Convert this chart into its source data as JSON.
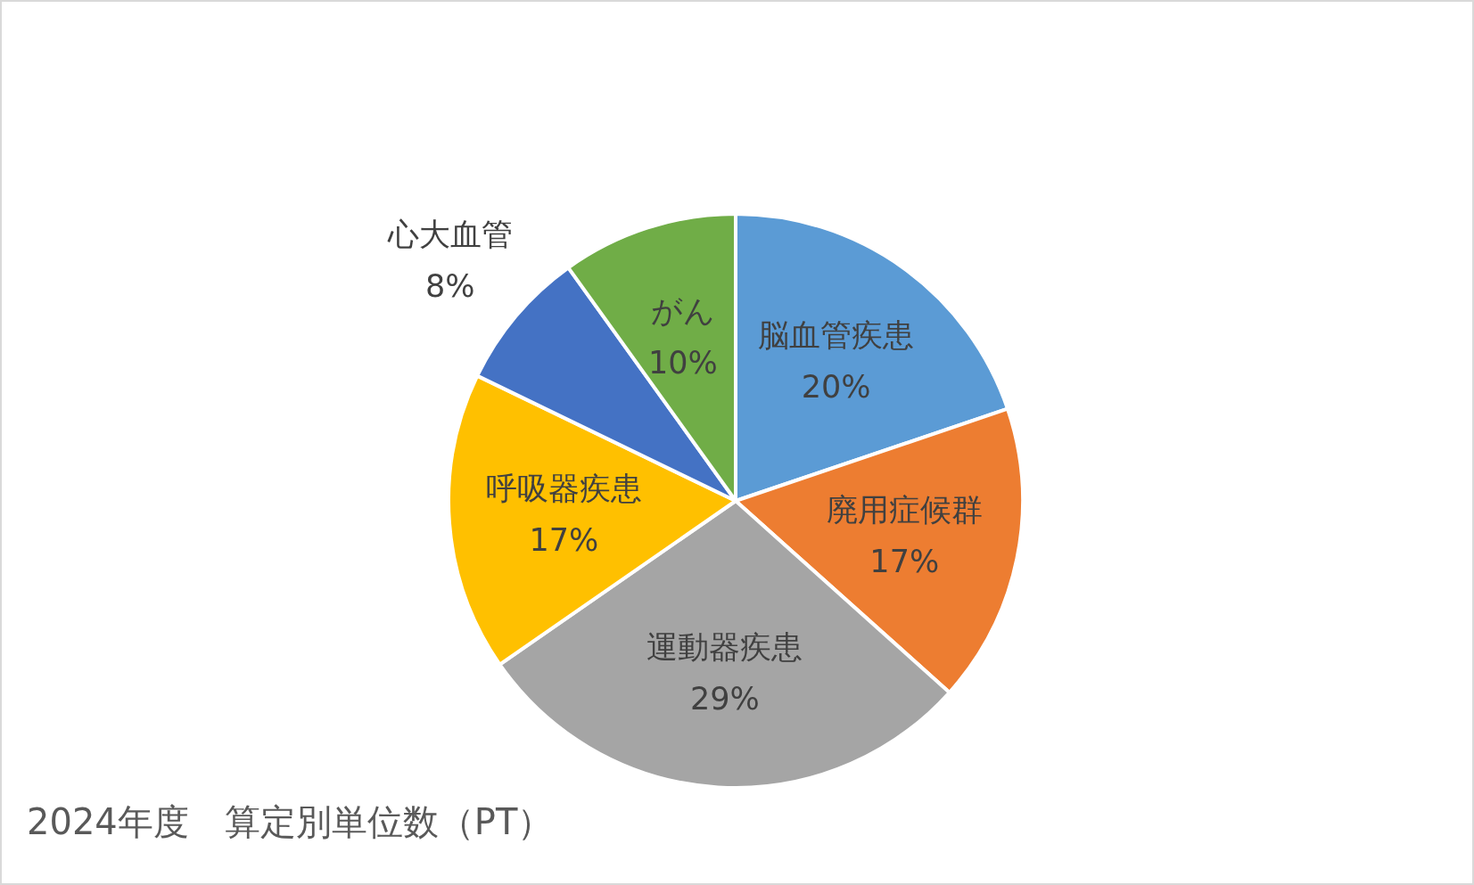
{
  "chart_data": {
    "type": "pie",
    "title": "2024年度　算定別単位数（PT）",
    "categories": [
      "脳血管疾患",
      "廃用症候群",
      "運動器疾患",
      "呼吸器疾患",
      "心大血管",
      "がん"
    ],
    "values": [
      20,
      17,
      29,
      17,
      8,
      10
    ],
    "value_labels": [
      "20%",
      "17%",
      "29%",
      "17%",
      "8%",
      "10%"
    ],
    "colors": [
      "#5b9bd5",
      "#ed7d31",
      "#a5a5a5",
      "#ffc000",
      "#4472c4",
      "#70ad47"
    ],
    "legend": false
  }
}
